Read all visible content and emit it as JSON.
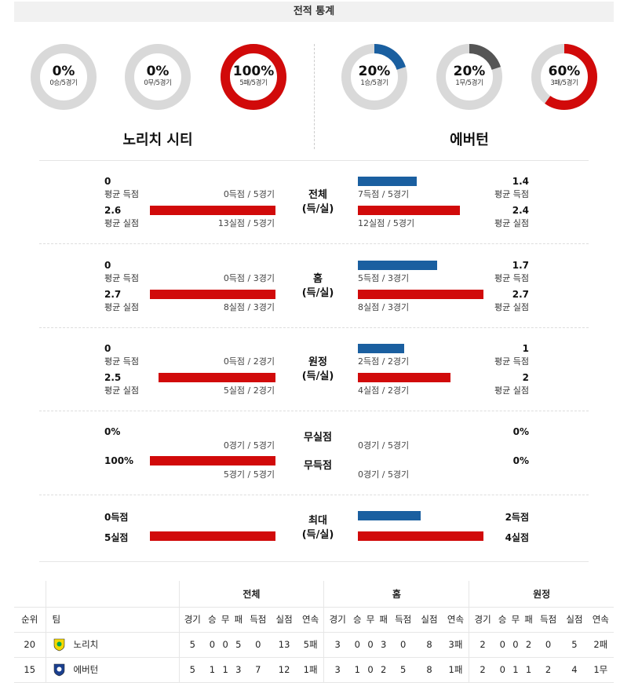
{
  "header": {
    "title": "전적 통계"
  },
  "summary": {
    "home": {
      "name": "노리치 시티",
      "donuts": [
        {
          "pct": "0%",
          "sub": "0승/5경기",
          "fraction": 0,
          "color": "#1a5fa0"
        },
        {
          "pct": "0%",
          "sub": "0무/5경기",
          "fraction": 0,
          "color": "#555555"
        },
        {
          "pct": "100%",
          "sub": "5패/5경기",
          "fraction": 1,
          "color": "#d10a0a"
        }
      ]
    },
    "away": {
      "name": "에버턴",
      "donuts": [
        {
          "pct": "20%",
          "sub": "1승/5경기",
          "fraction": 0.2,
          "color": "#1a5fa0"
        },
        {
          "pct": "20%",
          "sub": "1무/5경기",
          "fraction": 0.2,
          "color": "#555555"
        },
        {
          "pct": "60%",
          "sub": "3패/5경기",
          "fraction": 0.6,
          "color": "#d10a0a"
        }
      ]
    }
  },
  "sections": [
    {
      "center": [
        "전체",
        "(득/실)"
      ],
      "home": {
        "scored": "0",
        "scored_label": "평균 득점",
        "scored_detail": "0득점 / 5경기",
        "scored_frac": 0,
        "conceded": "2.6",
        "conceded_label": "평균 실점",
        "conceded_detail": "13실점 / 5경기",
        "conceded_frac": 1
      },
      "away": {
        "scored": "1.4",
        "scored_label": "평균 득점",
        "scored_detail": "7득점 / 5경기",
        "scored_frac": 0.47,
        "conceded": "2.4",
        "conceded_label": "평균 실점",
        "conceded_detail": "12실점 / 5경기",
        "conceded_frac": 0.81
      }
    },
    {
      "center": [
        "홈",
        "(득/실)"
      ],
      "home": {
        "scored": "0",
        "scored_label": "평균 득점",
        "scored_detail": "0득점 / 3경기",
        "scored_frac": 0,
        "conceded": "2.7",
        "conceded_label": "평균 실점",
        "conceded_detail": "8실점 / 3경기",
        "conceded_frac": 1
      },
      "away": {
        "scored": "1.7",
        "scored_label": "평균 득점",
        "scored_detail": "5득점 / 3경기",
        "scored_frac": 0.63,
        "conceded": "2.7",
        "conceded_label": "평균 실점",
        "conceded_detail": "8실점 / 3경기",
        "conceded_frac": 1
      }
    },
    {
      "center": [
        "원정",
        "(득/실)"
      ],
      "home": {
        "scored": "0",
        "scored_label": "평균 득점",
        "scored_detail": "0득점 / 2경기",
        "scored_frac": 0,
        "conceded": "2.5",
        "conceded_label": "평균 실점",
        "conceded_detail": "5실점 / 2경기",
        "conceded_frac": 0.93
      },
      "away": {
        "scored": "1",
        "scored_label": "평균 득점",
        "scored_detail": "2득점 / 2경기",
        "scored_frac": 0.37,
        "conceded": "2",
        "conceded_label": "평균 실점",
        "conceded_detail": "4실점 / 2경기",
        "conceded_frac": 0.74
      }
    }
  ],
  "shutouts": {
    "labels": [
      "무실점",
      "무득점"
    ],
    "home": {
      "cs_pct": "0%",
      "cs_detail": "0경기 / 5경기",
      "cs_frac": 0,
      "fts_pct": "100%",
      "fts_detail": "5경기 / 5경기",
      "fts_frac": 1
    },
    "away": {
      "cs_pct": "0%",
      "cs_detail": "0경기 / 5경기",
      "cs_frac": 0,
      "fts_pct": "0%",
      "fts_detail": "0경기 / 5경기",
      "fts_frac": 0
    }
  },
  "max": {
    "center": [
      "최대",
      "(득/실)"
    ],
    "home": {
      "scored": "0득점",
      "scored_frac": 0,
      "conceded": "5실점",
      "conceded_frac": 1
    },
    "away": {
      "scored": "2득점",
      "scored_frac": 0.5,
      "conceded": "4실점",
      "conceded_frac": 1
    }
  },
  "standings": {
    "group_headers": [
      "전체",
      "홈",
      "원정"
    ],
    "col_rank": "순위",
    "col_team": "팀",
    "sub_headers": [
      "경기",
      "승",
      "무",
      "패",
      "득점",
      "실점",
      "연속"
    ],
    "rows": [
      {
        "rank": "20",
        "team": "노리치",
        "crest_color": "#f5d800",
        "crest_accent": "#00a650",
        "total": [
          "5",
          "0",
          "0",
          "5",
          "0",
          "13",
          "5패"
        ],
        "home": [
          "3",
          "0",
          "0",
          "3",
          "0",
          "8",
          "3패"
        ],
        "away": [
          "2",
          "0",
          "0",
          "2",
          "0",
          "5",
          "2패"
        ]
      },
      {
        "rank": "15",
        "team": "에버턴",
        "crest_color": "#1a3f8f",
        "crest_accent": "#ffffff",
        "total": [
          "5",
          "1",
          "1",
          "3",
          "7",
          "12",
          "1패"
        ],
        "home": [
          "3",
          "1",
          "0",
          "2",
          "5",
          "8",
          "1패"
        ],
        "away": [
          "2",
          "0",
          "1",
          "1",
          "2",
          "4",
          "1무"
        ]
      }
    ]
  }
}
